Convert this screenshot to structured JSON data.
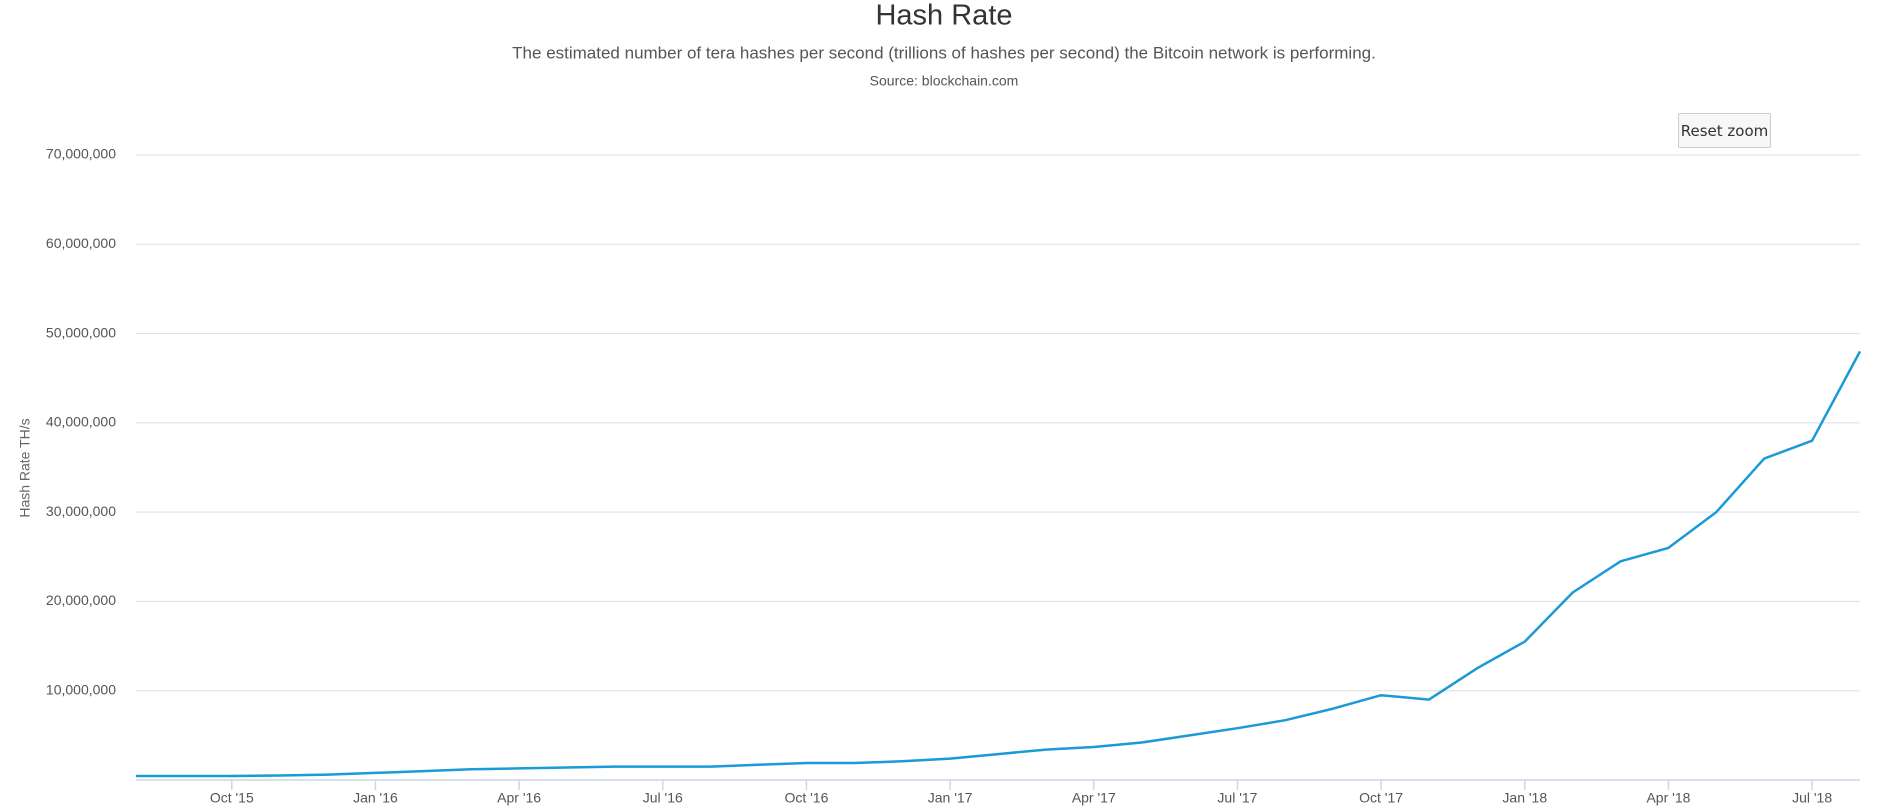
{
  "reset_zoom": "Reset zoom",
  "chart_data": {
    "type": "line",
    "title": "Hash Rate",
    "subtitle": "The estimated number of tera hashes per second (trillions of hashes per second) the Bitcoin network is performing.",
    "source": "Source: blockchain.com",
    "y_label": "Hash Rate TH/s",
    "x": [
      "2015-08",
      "2015-09",
      "2015-10",
      "2015-11",
      "2015-12",
      "2016-01",
      "2016-02",
      "2016-03",
      "2016-04",
      "2016-05",
      "2016-06",
      "2016-07",
      "2016-08",
      "2016-09",
      "2016-10",
      "2016-11",
      "2016-12",
      "2017-01",
      "2017-02",
      "2017-03",
      "2017-04",
      "2017-05",
      "2017-06",
      "2017-07",
      "2017-08",
      "2017-09",
      "2017-10",
      "2017-11",
      "2017-12",
      "2018-01",
      "2018-02",
      "2018-03",
      "2018-04",
      "2018-05",
      "2018-06",
      "2018-07",
      "2018-08"
    ],
    "series": [
      {
        "name": "Hash Rate",
        "color": "#1a9ad6",
        "values": [
          450000,
          450000,
          450000,
          500000,
          600000,
          800000,
          1000000,
          1200000,
          1300000,
          1400000,
          1500000,
          1500000,
          1500000,
          1700000,
          1900000,
          1900000,
          2100000,
          2400000,
          2900000,
          3400000,
          3700000,
          4200000,
          5000000,
          5800000,
          6700000,
          8000000,
          9500000,
          9000000,
          12500000,
          15500000,
          21000000,
          24500000,
          26000000,
          30000000,
          36000000,
          38000000,
          48000000
        ]
      }
    ],
    "xlim": [
      "2015-08",
      "2018-08"
    ],
    "xticks": [
      {
        "value": "2015-10",
        "label": "Oct '15"
      },
      {
        "value": "2016-01",
        "label": "Jan '16"
      },
      {
        "value": "2016-04",
        "label": "Apr '16"
      },
      {
        "value": "2016-07",
        "label": "Jul '16"
      },
      {
        "value": "2016-10",
        "label": "Oct '16"
      },
      {
        "value": "2017-01",
        "label": "Jan '17"
      },
      {
        "value": "2017-04",
        "label": "Apr '17"
      },
      {
        "value": "2017-07",
        "label": "Jul '17"
      },
      {
        "value": "2017-10",
        "label": "Oct '17"
      },
      {
        "value": "2018-01",
        "label": "Jan '18"
      },
      {
        "value": "2018-04",
        "label": "Apr '18"
      },
      {
        "value": "2018-07",
        "label": "Jul '18"
      }
    ],
    "ylim": [
      0,
      70000000
    ],
    "yticks": [
      {
        "value": 10000000,
        "label": "10,000,000"
      },
      {
        "value": 20000000,
        "label": "20,000,000"
      },
      {
        "value": 30000000,
        "label": "30,000,000"
      },
      {
        "value": 40000000,
        "label": "40,000,000"
      },
      {
        "value": 50000000,
        "label": "50,000,000"
      },
      {
        "value": 60000000,
        "label": "60,000,000"
      },
      {
        "value": 70000000,
        "label": "70,000,000"
      }
    ],
    "grid": true
  }
}
